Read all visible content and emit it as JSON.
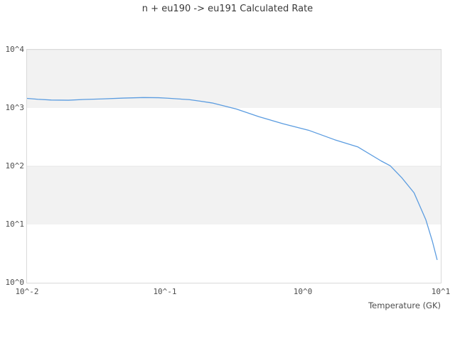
{
  "chart_data": {
    "type": "line",
    "title": "n + eu190 -> eu191 Calculated Rate",
    "xlabel": "Temperature (GK)",
    "ylabel": "",
    "x_scale": "log",
    "y_scale": "log",
    "xlim": [
      0.01,
      10
    ],
    "ylim": [
      1,
      10000
    ],
    "grid": false,
    "legend_position": "none",
    "x_ticks": [
      {
        "value": 0.01,
        "label": "10^-2"
      },
      {
        "value": 0.1,
        "label": "10^-1"
      },
      {
        "value": 1,
        "label": "10^0"
      },
      {
        "value": 10,
        "label": "10^1"
      }
    ],
    "y_ticks": [
      {
        "value": 1,
        "label": "10^0"
      },
      {
        "value": 10,
        "label": "10^1"
      },
      {
        "value": 100,
        "label": "10^2"
      },
      {
        "value": 1000,
        "label": "10^3"
      },
      {
        "value": 10000,
        "label": "10^4"
      }
    ],
    "shaded_decades": [
      [
        1000,
        10000
      ],
      [
        10,
        100
      ]
    ],
    "series": [
      {
        "name": "calculated-rate",
        "points": [
          [
            0.01,
            1460
          ],
          [
            0.012,
            1410
          ],
          [
            0.015,
            1370
          ],
          [
            0.02,
            1360
          ],
          [
            0.026,
            1400
          ],
          [
            0.035,
            1430
          ],
          [
            0.05,
            1480
          ],
          [
            0.07,
            1510
          ],
          [
            0.09,
            1500
          ],
          [
            0.105,
            1470
          ],
          [
            0.15,
            1390
          ],
          [
            0.18,
            1310
          ],
          [
            0.22,
            1220
          ],
          [
            0.33,
            960
          ],
          [
            0.48,
            710
          ],
          [
            0.72,
            535
          ],
          [
            1.1,
            415
          ],
          [
            1.7,
            285
          ],
          [
            2.5,
            215
          ],
          [
            3.7,
            123
          ],
          [
            4.3,
            102
          ],
          [
            5.2,
            64
          ],
          [
            6.4,
            35
          ],
          [
            7.8,
            12
          ],
          [
            8.7,
            5.1
          ],
          [
            9.4,
            2.5
          ]
        ]
      }
    ],
    "colors": {
      "line": "#5b9ce0",
      "band": "#f2f2f2",
      "band_edge": "#e7e7e7",
      "plot_border": "#d9d9d9",
      "tick_label": "#4d4d4d",
      "title": "#3a3a3a"
    }
  }
}
